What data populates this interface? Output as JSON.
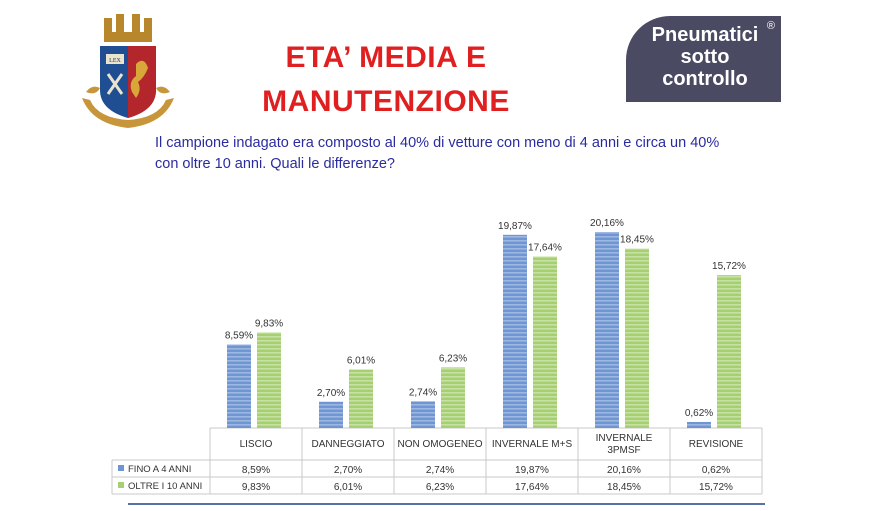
{
  "title_line1": "ETA’ MEDIA E",
  "title_line2": "MANUTENZIONE",
  "logo": {
    "motto": "LEX"
  },
  "brand": {
    "line1": "Pneumatici",
    "line2": "sotto",
    "line3": "controllo",
    "mark": "®"
  },
  "subtitle_line1": "Il campione indagato era composto al 40% di vetture con meno di 4 anni e circa un 40%",
  "subtitle_line2": "con oltre 10 anni. Quali le differenze?",
  "colors": {
    "title": "#e02020",
    "subtitle": "#2b2ba0",
    "series1": "#6f95d2",
    "series2": "#a6cf72",
    "brand_bg": "#4a4a63"
  },
  "chart_data": {
    "type": "bar",
    "categories": [
      [
        "LISCIO"
      ],
      [
        "DANNEGGIATO"
      ],
      [
        "NON OMOGENEO"
      ],
      [
        "INVERNALE M+S"
      ],
      [
        "INVERNALE",
        "3PMSF"
      ],
      [
        "REVISIONE"
      ]
    ],
    "series": [
      {
        "name": "FINO A 4 ANNI",
        "values": [
          8.59,
          2.7,
          2.74,
          19.87,
          20.16,
          0.62
        ],
        "labels": [
          "8,59%",
          "2,70%",
          "2,74%",
          "19,87%",
          "20,16%",
          "0,62%"
        ]
      },
      {
        "name": "OLTRE I 10 ANNI",
        "values": [
          9.83,
          6.01,
          6.23,
          17.64,
          18.45,
          15.72
        ],
        "labels": [
          "9,83%",
          "6,01%",
          "6,23%",
          "17,64%",
          "18,45%",
          "15,72%"
        ]
      }
    ],
    "ylim": [
      0,
      20.16
    ],
    "data_table": true,
    "legend": "in data table"
  }
}
